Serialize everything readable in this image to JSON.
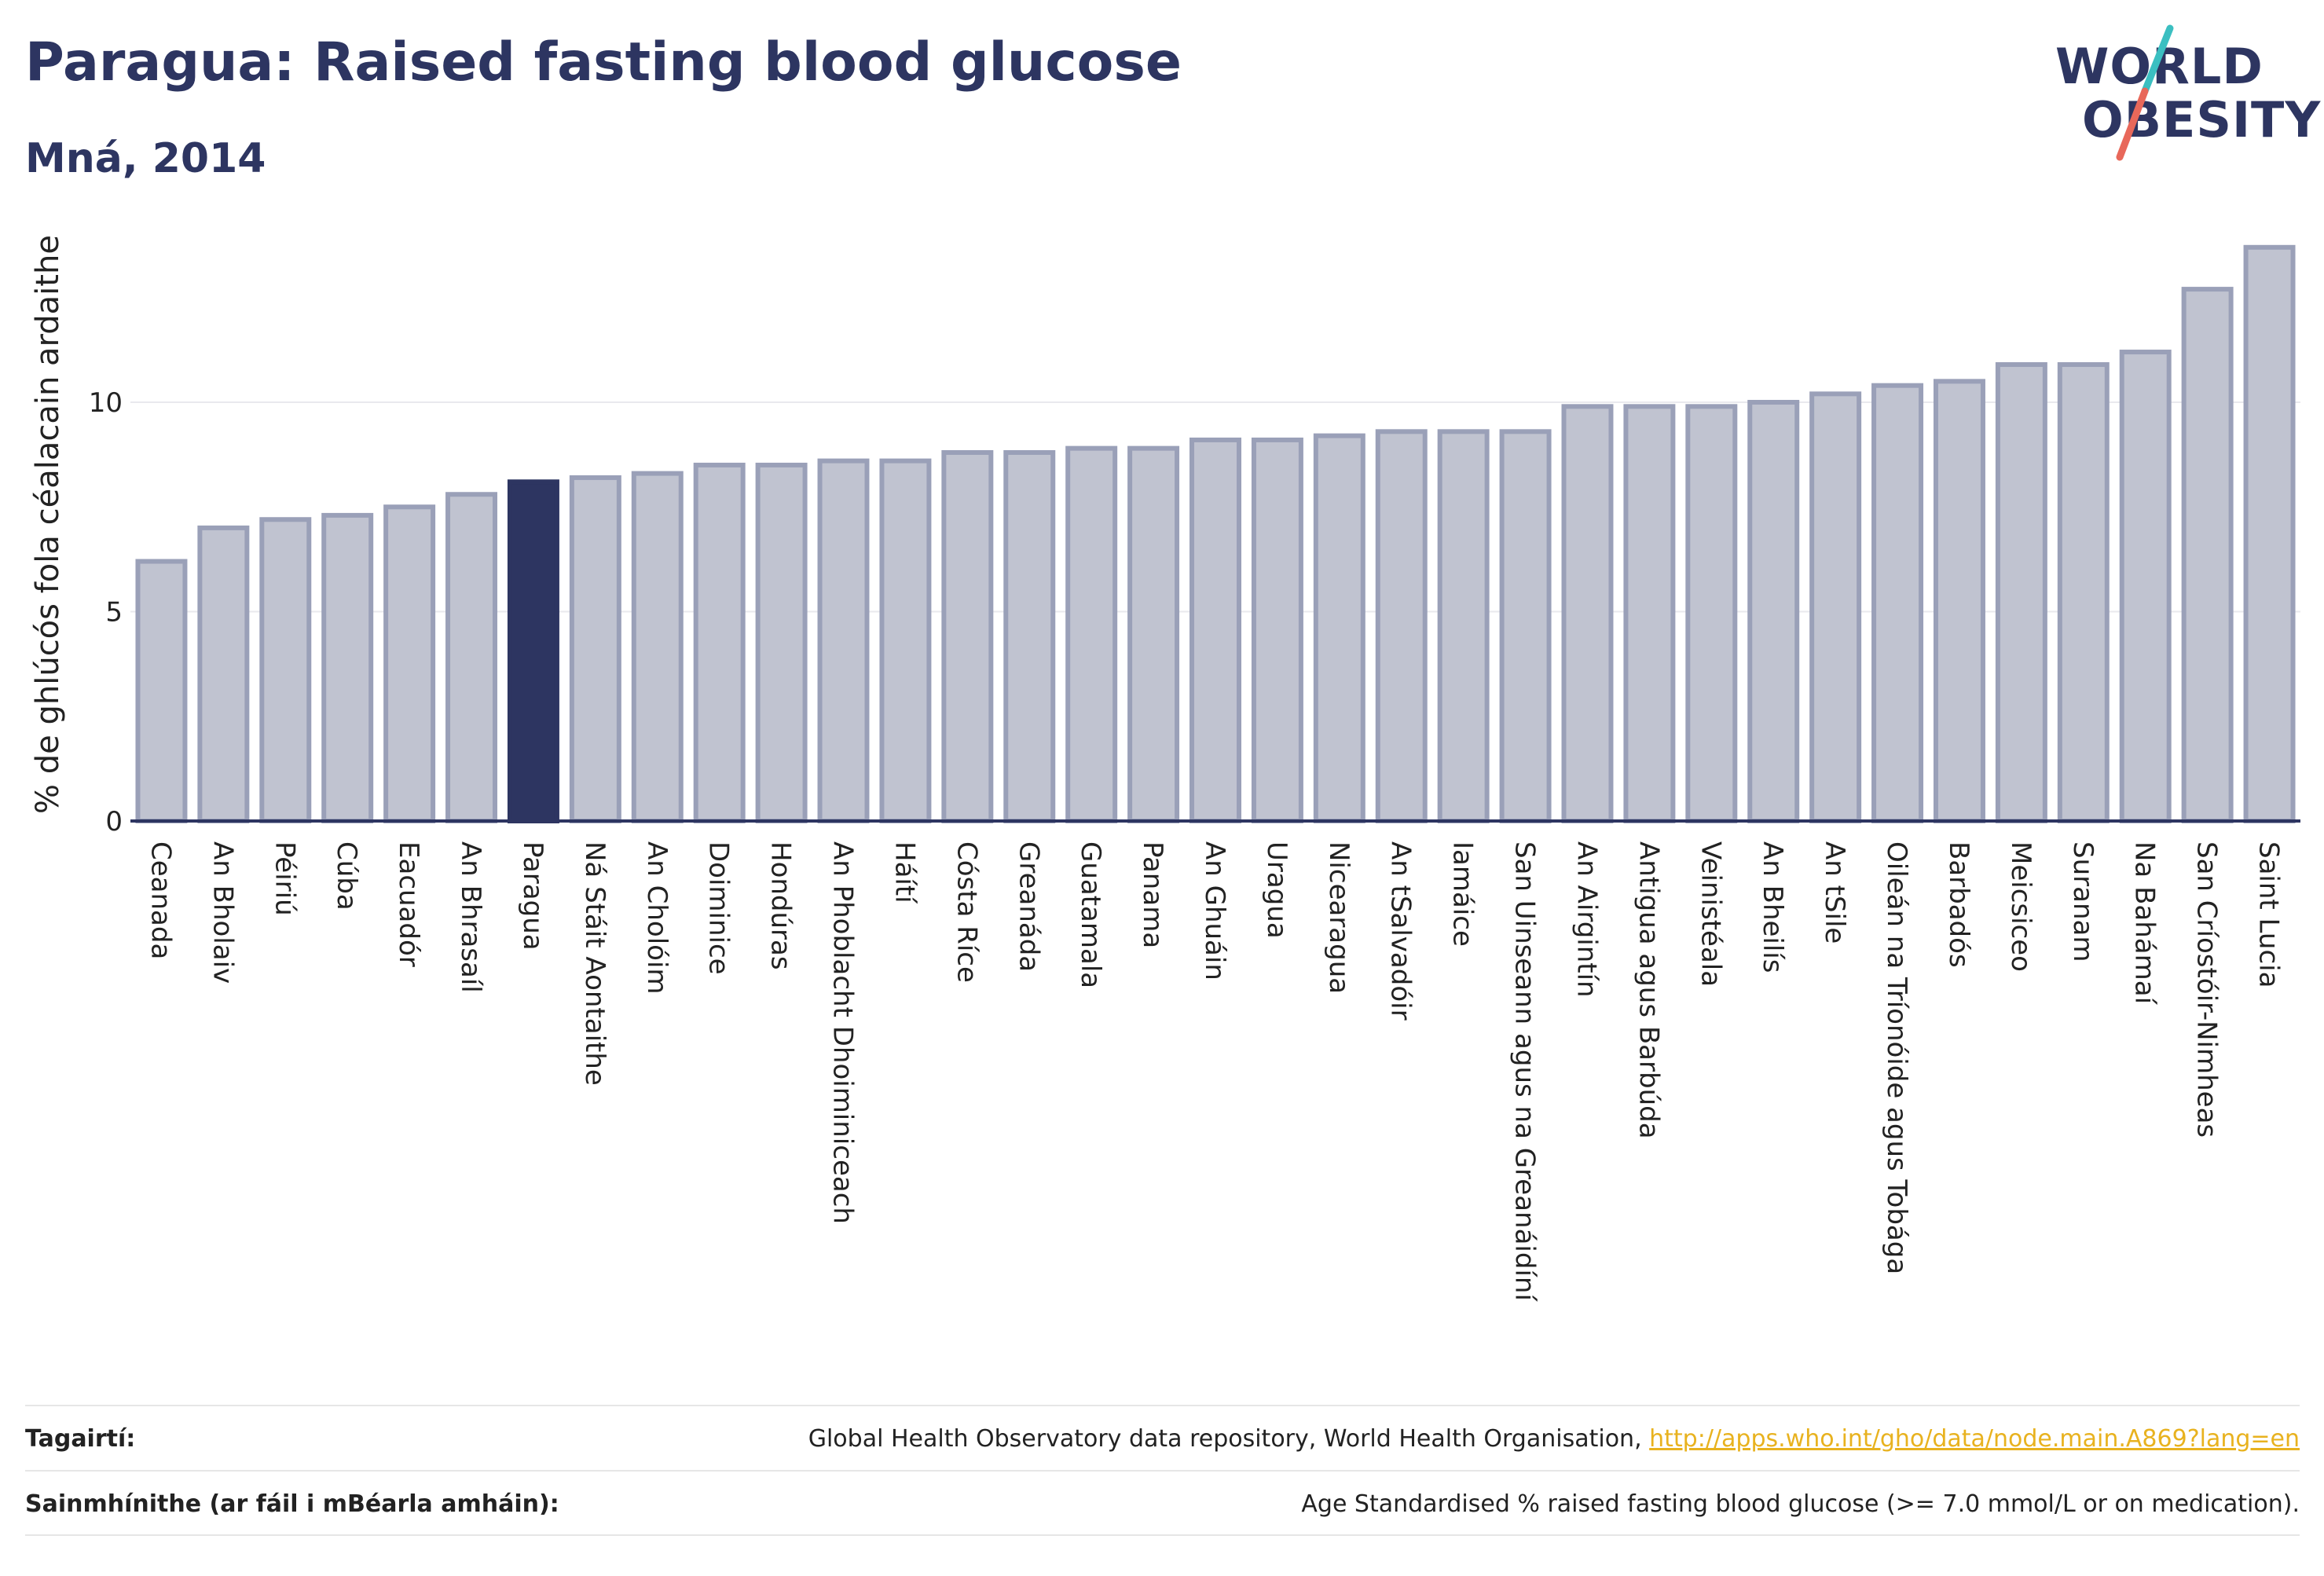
{
  "header": {
    "title": "Paragua: Raised fasting blood glucose",
    "subtitle": "Mná, 2014"
  },
  "logo": {
    "line1": "WORLD",
    "line2": "OBESITY"
  },
  "colors": {
    "bar_fill": "#c0c3d0",
    "bar_stroke": "#9aa0b8",
    "highlight": "#2d3561",
    "grid": "#e9e9ee",
    "axis": "#2d3561",
    "logo_teal": "#3bbfc1",
    "logo_coral": "#e8685a",
    "link": "#e8b21f"
  },
  "chart_data": {
    "type": "bar",
    "ylabel": "% de ghlúcós fola céalacain ardaithe",
    "ylim": [
      0,
      14
    ],
    "yticks": [
      0,
      5,
      10
    ],
    "grid": true,
    "highlight": "Paragua",
    "categories": [
      "Ceanada",
      "An Bholaiv",
      "Péiriú",
      "Cúba",
      "Eacuadór",
      "An Bhrasaíl",
      "Paragua",
      "Ná Stáit Aontaithe",
      "An Cholóim",
      "Doiminice",
      "Hondúras",
      "An Phoblacht Dhoiminiceach",
      "Háítí",
      "Cósta Ríce",
      "Greanáda",
      "Guatamala",
      "Panama",
      "An Ghuáin",
      "Uragua",
      "Nicearagua",
      "An tSalvadóir",
      "Iamáice",
      "San Uinseann agus na Greanáidíní",
      "An Airgintín",
      "Antigua agus Barbúda",
      "Veinistéala",
      "An Bheilís",
      "An tSile",
      "Oileán na Tríonóide agus Tobága",
      "Barbadós",
      "Meicsiceo",
      "Suranam",
      "Na Bahámaí",
      "San Críostóir-Nimheas",
      "Saint Lucia"
    ],
    "values": [
      6.2,
      7.0,
      7.2,
      7.3,
      7.5,
      7.8,
      8.1,
      8.2,
      8.3,
      8.5,
      8.5,
      8.6,
      8.6,
      8.8,
      8.8,
      8.9,
      8.9,
      9.1,
      9.1,
      9.2,
      9.3,
      9.3,
      9.3,
      9.9,
      9.9,
      9.9,
      10.0,
      10.2,
      10.4,
      10.5,
      10.9,
      10.9,
      11.2,
      12.7,
      13.7
    ]
  },
  "footer": {
    "references_label": "Tagairtí:",
    "references_text": "Global Health Observatory data repository, World Health Organisation, ",
    "references_link": "http://apps.who.int/gho/data/node.main.A869?lang=en",
    "definitions_label": "Sainmhínithe (ar fáil i mBéarla amháin):",
    "definitions_text": "Age Standardised % raised fasting blood glucose (>= 7.0 mmol/L or on medication)."
  }
}
